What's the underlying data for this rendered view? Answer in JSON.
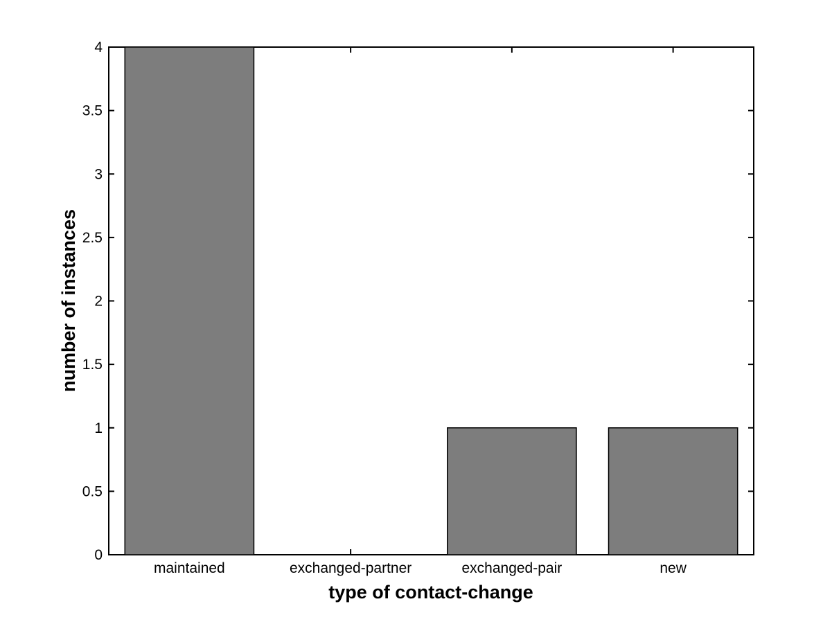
{
  "figure": {
    "background": "#ffffff"
  },
  "chart_data": {
    "type": "bar",
    "title": "",
    "xlabel": "type of contact-change",
    "ylabel": "number of instances",
    "categories": [
      "maintained",
      "exchanged-partner",
      "exchanged-pair",
      "new"
    ],
    "values": [
      4,
      0,
      1,
      1
    ],
    "ylim": [
      0,
      4
    ],
    "yticks": [
      0,
      0.5,
      1,
      1.5,
      2,
      2.5,
      3,
      3.5,
      4
    ],
    "ytick_labels": [
      "0",
      "0.5",
      "1",
      "1.5",
      "2",
      "2.5",
      "3",
      "3.5",
      "4"
    ],
    "bar_color": "#7d7d7d",
    "bar_edge_color": "#000000",
    "axis_color": "#000000",
    "bar_width_fraction": 0.8,
    "grid": false,
    "legend_position": "none"
  }
}
